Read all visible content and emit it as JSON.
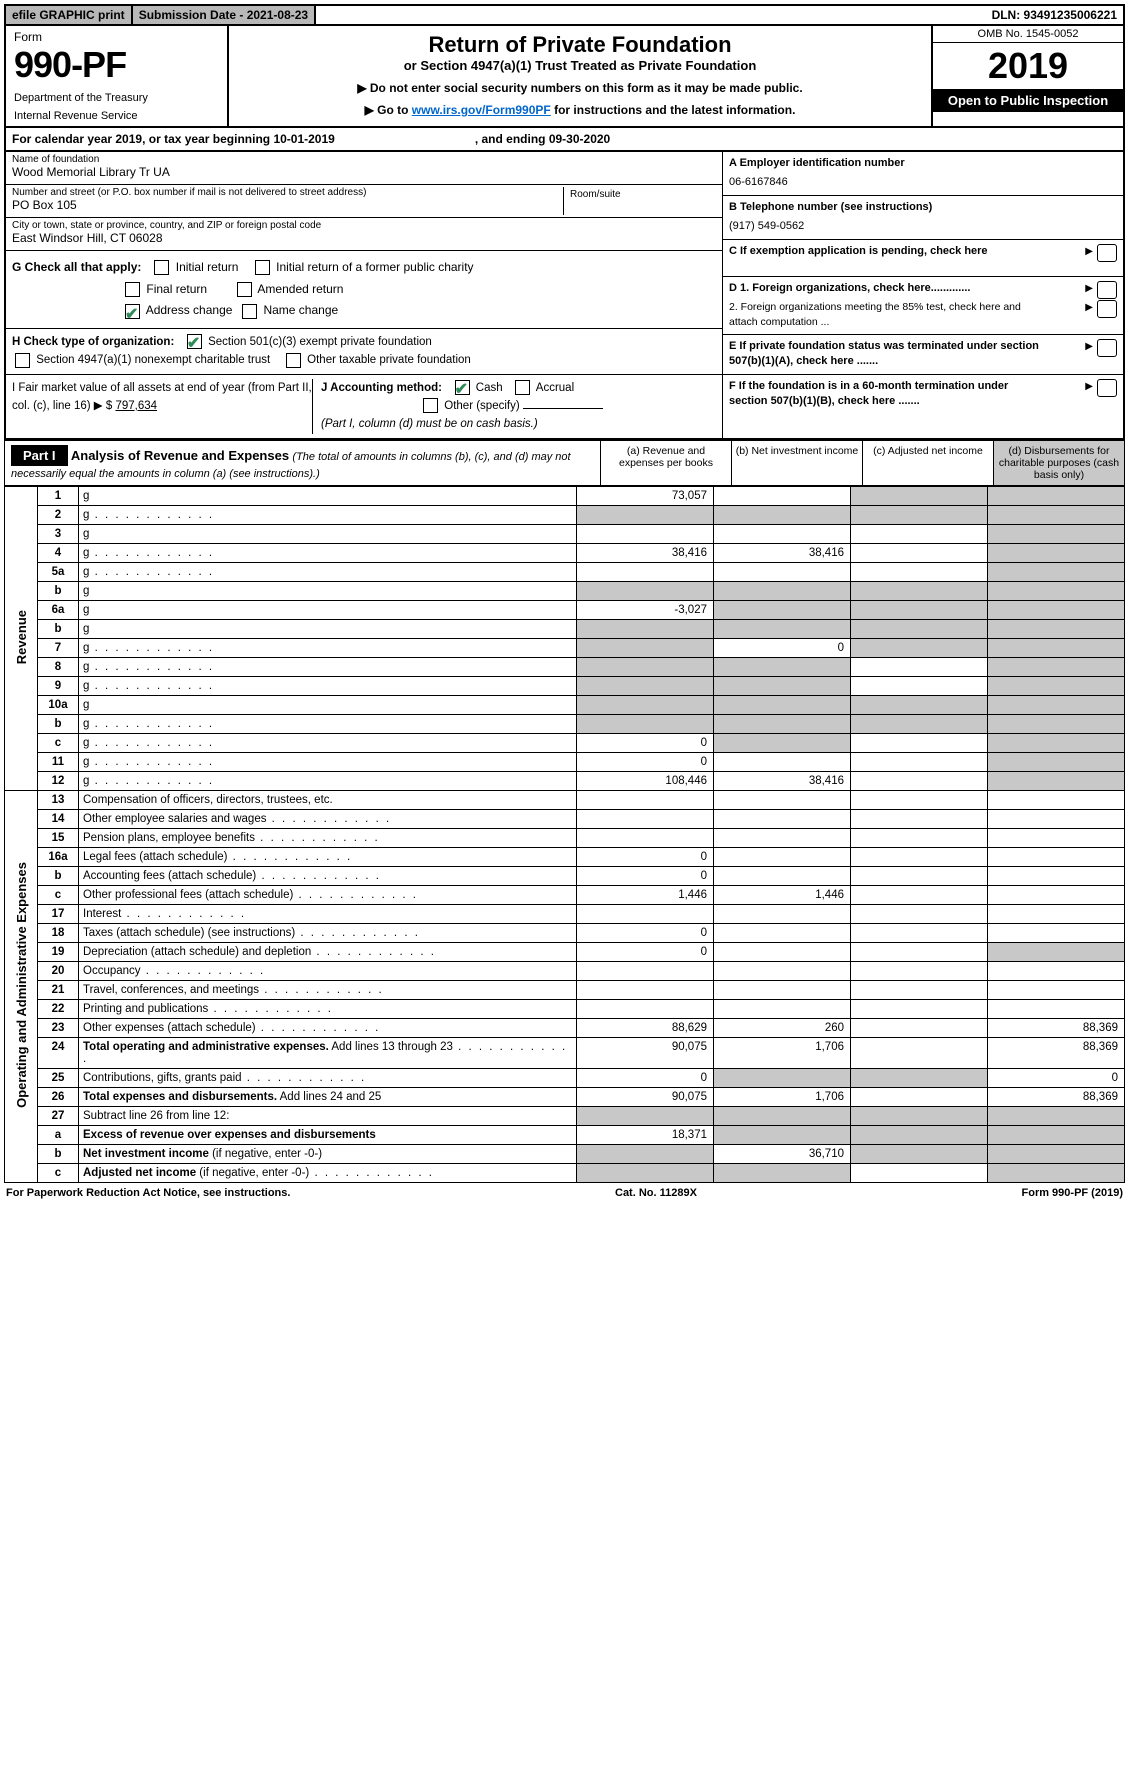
{
  "topbar": {
    "efile": "efile GRAPHIC print",
    "subdate_label": "Submission Date - 2021-08-23",
    "dln": "DLN: 93491235006221"
  },
  "header": {
    "form_label": "Form",
    "form_number": "990-PF",
    "dept": "Department of the Treasury",
    "irs": "Internal Revenue Service",
    "title": "Return of Private Foundation",
    "subtitle": "or Section 4947(a)(1) Trust Treated as Private Foundation",
    "note1": "▶ Do not enter social security numbers on this form as it may be made public.",
    "note2_pre": "▶ Go to ",
    "note2_link": "www.irs.gov/Form990PF",
    "note2_post": " for instructions and the latest information.",
    "omb": "OMB No. 1545-0052",
    "year": "2019",
    "open": "Open to Public Inspection"
  },
  "calrow": {
    "text1": "For calendar year 2019, or tax year beginning 10-01-2019",
    "text2": ", and ending 09-30-2020"
  },
  "info": {
    "name_lbl": "Name of foundation",
    "name": "Wood Memorial Library Tr UA",
    "addr_lbl": "Number and street (or P.O. box number if mail is not delivered to street address)",
    "addr": "PO Box 105",
    "room_lbl": "Room/suite",
    "city_lbl": "City or town, state or province, country, and ZIP or foreign postal code",
    "city": "East Windsor Hill, CT  06028",
    "A_lbl": "A Employer identification number",
    "A_val": "06-6167846",
    "B_lbl": "B Telephone number (see instructions)",
    "B_val": "(917) 549-0562",
    "C_lbl": "C If exemption application is pending, check here",
    "D1_lbl": "D 1. Foreign organizations, check here.............",
    "D2_lbl": "2. Foreign organizations meeting the 85% test, check here and attach computation ...",
    "E_lbl": "E  If private foundation status was terminated under section 507(b)(1)(A), check here .......",
    "F_lbl": "F  If the foundation is in a 60-month termination under section 507(b)(1)(B), check here .......",
    "G_lbl": "G Check all that apply:",
    "G_opts": {
      "initial": "Initial return",
      "initial_former": "Initial return of a former public charity",
      "final": "Final return",
      "amended": "Amended return",
      "addr_change": "Address change",
      "name_change": "Name change"
    },
    "H_lbl": "H Check type of organization:",
    "H_501c3": "Section 501(c)(3) exempt private foundation",
    "H_4947": "Section 4947(a)(1) nonexempt charitable trust",
    "H_other": "Other taxable private foundation",
    "I_lbl": "I Fair market value of all assets at end of year (from Part II, col. (c), line 16) ▶ $",
    "I_val": "797,634",
    "J_lbl": "J Accounting method:",
    "J_cash": "Cash",
    "J_accrual": "Accrual",
    "J_other": "Other (specify)",
    "J_note": "(Part I, column (d) must be on cash basis.)"
  },
  "part1": {
    "label": "Part I",
    "title": "Analysis of Revenue and Expenses",
    "sub": "(The total of amounts in columns (b), (c), and (d) may not necessarily equal the amounts in column (a) (see instructions).)",
    "cols": {
      "a": "(a)    Revenue and expenses per books",
      "b": "(b)    Net investment income",
      "c": "(c)    Adjusted net income",
      "d": "(d)    Disbursements for charitable purposes (cash basis only)"
    },
    "revenue_label": "Revenue",
    "expenses_label": "Operating and Administrative Expenses",
    "lines": [
      {
        "n": "1",
        "d": "g",
        "a": "73,057",
        "b": "",
        "c": "g"
      },
      {
        "n": "2",
        "d": "g",
        "dots": true,
        "a": "g",
        "b": "g",
        "c": "g"
      },
      {
        "n": "3",
        "d": "g",
        "a": "",
        "b": "",
        "c": ""
      },
      {
        "n": "4",
        "d": "g",
        "dots": true,
        "a": "38,416",
        "b": "38,416",
        "c": ""
      },
      {
        "n": "5a",
        "d": "g",
        "dots": true,
        "a": "",
        "b": "",
        "c": ""
      },
      {
        "n": "b",
        "d": "g",
        "a": "g",
        "b": "g",
        "c": "g"
      },
      {
        "n": "6a",
        "d": "g",
        "a": "-3,027",
        "b": "g",
        "c": "g"
      },
      {
        "n": "b",
        "d": "g",
        "a": "g",
        "b": "g",
        "c": "g"
      },
      {
        "n": "7",
        "d": "g",
        "dots": true,
        "a": "g",
        "b": "0",
        "c": "g"
      },
      {
        "n": "8",
        "d": "g",
        "dots": true,
        "a": "g",
        "b": "g",
        "c": ""
      },
      {
        "n": "9",
        "d": "g",
        "dots": true,
        "a": "g",
        "b": "g",
        "c": ""
      },
      {
        "n": "10a",
        "d": "g",
        "a": "g",
        "b": "g",
        "c": "g"
      },
      {
        "n": "b",
        "d": "g",
        "dots": true,
        "a": "g",
        "b": "g",
        "c": "g"
      },
      {
        "n": "c",
        "d": "g",
        "dots": true,
        "a": "0",
        "b": "g",
        "c": ""
      },
      {
        "n": "11",
        "d": "g",
        "dots": true,
        "a": "0",
        "b": "",
        "c": ""
      },
      {
        "n": "12",
        "d": "g",
        "dots": true,
        "a": "108,446",
        "b": "38,416",
        "c": ""
      }
    ],
    "exp_lines": [
      {
        "n": "13",
        "d": "Compensation of officers, directors, trustees, etc.",
        "a": "",
        "b": "",
        "c": "",
        "dd": ""
      },
      {
        "n": "14",
        "d": "Other employee salaries and wages",
        "dots": true,
        "a": "",
        "b": "",
        "c": "",
        "dd": ""
      },
      {
        "n": "15",
        "d": "Pension plans, employee benefits",
        "dots": true,
        "a": "",
        "b": "",
        "c": "",
        "dd": ""
      },
      {
        "n": "16a",
        "d": "Legal fees (attach schedule)",
        "dots": true,
        "a": "0",
        "b": "",
        "c": "",
        "dd": ""
      },
      {
        "n": "b",
        "d": "Accounting fees (attach schedule)",
        "dots": true,
        "a": "0",
        "b": "",
        "c": "",
        "dd": ""
      },
      {
        "n": "c",
        "d": "Other professional fees (attach schedule)",
        "dots": true,
        "a": "1,446",
        "b": "1,446",
        "c": "",
        "dd": ""
      },
      {
        "n": "17",
        "d": "Interest",
        "dots": true,
        "a": "",
        "b": "",
        "c": "",
        "dd": ""
      },
      {
        "n": "18",
        "d": "Taxes (attach schedule) (see instructions)",
        "dots": true,
        "a": "0",
        "b": "",
        "c": "",
        "dd": ""
      },
      {
        "n": "19",
        "d": "Depreciation (attach schedule) and depletion",
        "dots": true,
        "a": "0",
        "b": "",
        "c": "",
        "dd": "g"
      },
      {
        "n": "20",
        "d": "Occupancy",
        "dots": true,
        "a": "",
        "b": "",
        "c": "",
        "dd": ""
      },
      {
        "n": "21",
        "d": "Travel, conferences, and meetings",
        "dots": true,
        "a": "",
        "b": "",
        "c": "",
        "dd": ""
      },
      {
        "n": "22",
        "d": "Printing and publications",
        "dots": true,
        "a": "",
        "b": "",
        "c": "",
        "dd": ""
      },
      {
        "n": "23",
        "d": "Other expenses (attach schedule)",
        "dots": true,
        "a": "88,629",
        "b": "260",
        "c": "",
        "dd": "88,369"
      },
      {
        "n": "24",
        "d": "<b>Total operating and administrative expenses.</b> Add lines 13 through 23",
        "dots": true,
        "a": "90,075",
        "b": "1,706",
        "c": "",
        "dd": "88,369"
      },
      {
        "n": "25",
        "d": "Contributions, gifts, grants paid",
        "dots": true,
        "a": "0",
        "b": "g",
        "c": "g",
        "dd": "0"
      },
      {
        "n": "26",
        "d": "<b>Total expenses and disbursements.</b> Add lines 24 and 25",
        "a": "90,075",
        "b": "1,706",
        "c": "",
        "dd": "88,369"
      },
      {
        "n": "27",
        "d": "Subtract line 26 from line 12:",
        "a": "g",
        "b": "g",
        "c": "g",
        "dd": "g"
      },
      {
        "n": "a",
        "d": "<b>Excess of revenue over expenses and disbursements</b>",
        "a": "18,371",
        "b": "g",
        "c": "g",
        "dd": "g"
      },
      {
        "n": "b",
        "d": "<b>Net investment income</b> (if negative, enter -0-)",
        "a": "g",
        "b": "36,710",
        "c": "g",
        "dd": "g"
      },
      {
        "n": "c",
        "d": "<b>Adjusted net income</b> (if negative, enter -0-)",
        "dots": true,
        "a": "g",
        "b": "g",
        "c": "",
        "dd": "g"
      }
    ]
  },
  "footer": {
    "left": "For Paperwork Reduction Act Notice, see instructions.",
    "mid": "Cat. No. 11289X",
    "right": "Form 990-PF (2019)"
  }
}
